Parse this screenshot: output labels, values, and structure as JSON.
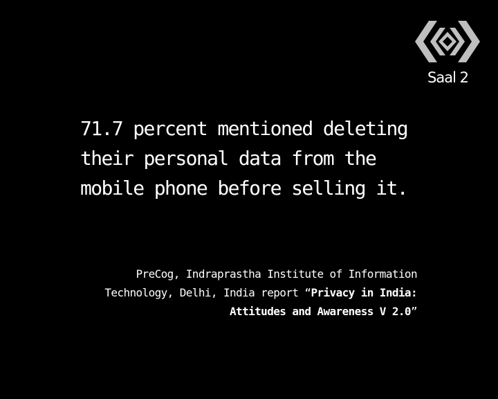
{
  "logo": {
    "icon": "saal-2-logo-icon",
    "color": "#bfbfbf",
    "label": "Saal 2"
  },
  "headline": {
    "lines": [
      "71.7 percent mentioned deleting",
      "their personal data from the",
      "mobile phone before selling it."
    ]
  },
  "citation": {
    "line1": "PreCog, Indraprastha Institute of Information",
    "line2_plain": "Technology, Delhi, India report “",
    "line2_bold": "Privacy in India:",
    "line3_bold": "Attitudes and Awareness V 2.0",
    "line3_plain": "”"
  },
  "colors": {
    "background": "#000000",
    "text": "#ffffff"
  }
}
